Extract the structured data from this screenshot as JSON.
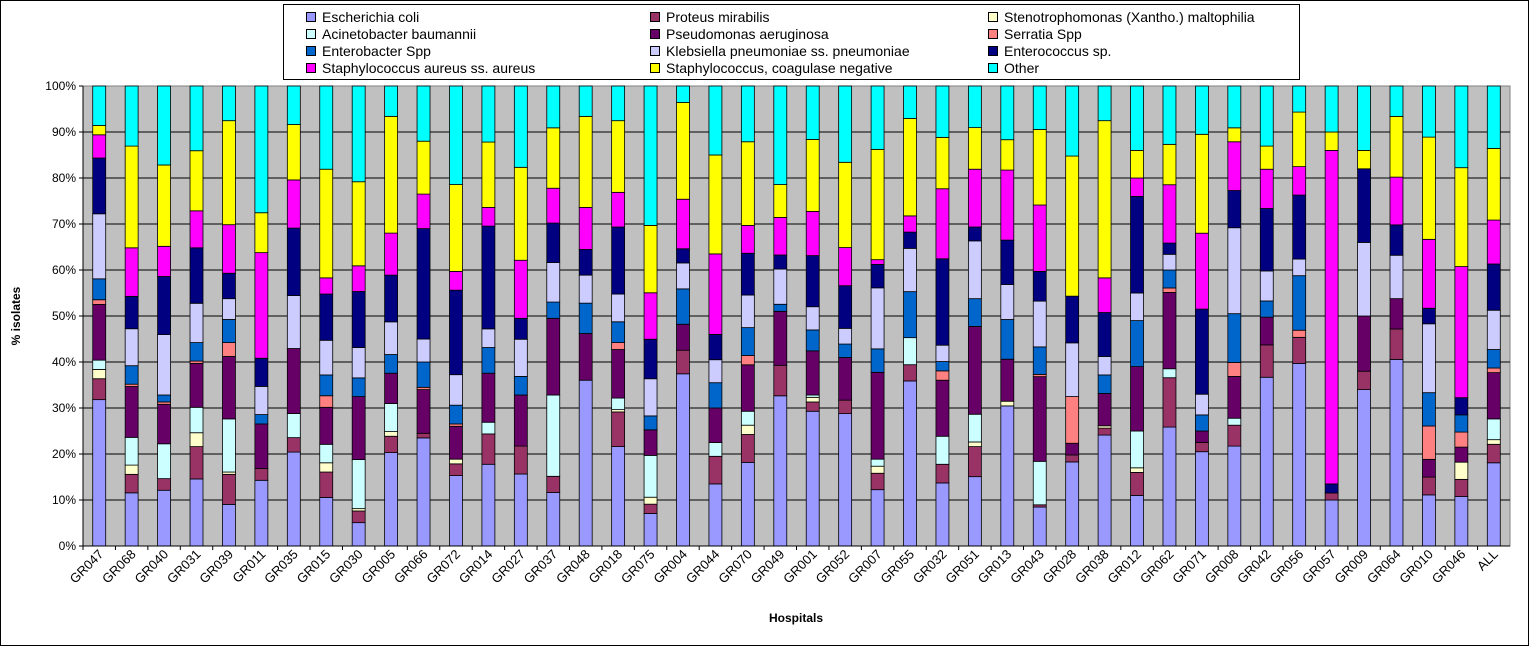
{
  "chart_data": {
    "type": "bar",
    "stacked": "percent",
    "xlabel": "Hospitals",
    "ylabel": "% isolates",
    "ylim": [
      0,
      100
    ],
    "yticks": [
      "0%",
      "10%",
      "20%",
      "30%",
      "40%",
      "50%",
      "60%",
      "70%",
      "80%",
      "90%",
      "100%"
    ],
    "plot_background": "#c0c0c0",
    "legend_position": "top",
    "categories": [
      "GR047",
      "GR068",
      "GR040",
      "GR031",
      "GR039",
      "GR011",
      "GR035",
      "GR015",
      "GR030",
      "GR005",
      "GR066",
      "GR072",
      "GR014",
      "GR027",
      "GR037",
      "GR048",
      "GR018",
      "GR075",
      "GR004",
      "GR044",
      "GR070",
      "GR049",
      "GR001",
      "GR052",
      "GR007",
      "GR055",
      "GR032",
      "GR051",
      "GR013",
      "GR043",
      "GR028",
      "GR038",
      "GR012",
      "GR062",
      "GR071",
      "GR008",
      "GR042",
      "GR056",
      "GR057",
      "GR009",
      "GR064",
      "GR010",
      "GR046",
      "ALL"
    ],
    "series": [
      {
        "name": "Escherichia coli",
        "color": "#9999ff",
        "values": [
          31.5,
          11.5,
          12,
          14.5,
          9,
          14,
          19.5,
          10.5,
          5,
          20,
          23.5,
          15,
          17.5,
          15.5,
          11.5,
          35.5,
          21.5,
          7,
          36.5,
          13.5,
          18,
          32,
          29,
          29.5,
          12,
          30.5,
          13.5,
          15,
          30,
          8.5,
          18,
          24,
          11,
          26.5,
          20.5,
          21.5,
          36.5,
          38.5,
          10,
          34,
          43,
          11.5,
          11.5,
          18
        ]
      },
      {
        "name": "Proteus mirabilis",
        "color": "#993366",
        "values": [
          4.5,
          4,
          2.5,
          7,
          6.5,
          2.5,
          3,
          5.5,
          2.5,
          3.5,
          1,
          2.5,
          6.5,
          6,
          3.5,
          0,
          7.5,
          2,
          5,
          6,
          6,
          6.5,
          2,
          3,
          3.5,
          3,
          4,
          6.5,
          0,
          0.5,
          1.5,
          1.5,
          5,
          11,
          2,
          4.5,
          7,
          5.5,
          1.5,
          4,
          7,
          4,
          4,
          4
        ]
      },
      {
        "name": "Stenotrophomonas (Xantho.) maltophilia",
        "color": "#ffffcc",
        "values": [
          2,
          2,
          0,
          3,
          0.5,
          0,
          0,
          2,
          0.5,
          1,
          0,
          1,
          0,
          0,
          0,
          0,
          0.5,
          1.5,
          0,
          0,
          2,
          0,
          1,
          0,
          1.5,
          0,
          0,
          1,
          1,
          0,
          0,
          0.5,
          1,
          0,
          0,
          0,
          0,
          0,
          0,
          0,
          0,
          0,
          4,
          1
        ]
      },
      {
        "name": "Acinetobacter baumannii",
        "color": "#ccffff",
        "values": [
          2,
          6,
          7.5,
          5.5,
          11.5,
          0,
          5,
          4,
          10.5,
          6,
          0,
          0,
          2.5,
          0,
          17.5,
          0,
          2.5,
          9,
          0,
          3,
          3,
          0,
          0.5,
          0,
          1.5,
          5,
          6,
          6,
          0,
          9.5,
          0,
          0,
          8,
          2,
          0,
          1.5,
          0,
          0,
          0,
          0,
          0,
          0,
          0,
          4.5
        ]
      },
      {
        "name": "Pseudomonas aeruginosa",
        "color": "#660066",
        "values": [
          12,
          11,
          8.5,
          9.5,
          13.5,
          9.5,
          13.5,
          8,
          13.5,
          6.5,
          9.5,
          7,
          10.5,
          11,
          16.5,
          10,
          10.5,
          5.5,
          5.5,
          7.5,
          10,
          11.5,
          9.5,
          9.5,
          18.5,
          0,
          12,
          19,
          9,
          18.5,
          2.5,
          7,
          14,
          17,
          2.5,
          9,
          6,
          0,
          0,
          12,
          7,
          4,
          3.5,
          10
        ]
      },
      {
        "name": "Serratia Spp",
        "color": "#ff8080",
        "values": [
          1,
          0.5,
          0.5,
          0.5,
          3,
          0,
          0,
          2.5,
          0,
          0,
          0.5,
          0.5,
          0,
          0,
          0,
          0,
          1.5,
          0,
          0,
          0,
          2,
          0,
          0,
          0,
          0,
          0,
          2,
          0,
          0,
          0.5,
          10,
          0,
          0,
          1,
          0,
          3,
          0,
          1.5,
          0,
          0,
          0,
          7.5,
          3.5,
          1
        ]
      },
      {
        "name": "Enterobacter Spp",
        "color": "#0066cc",
        "values": [
          4.5,
          4,
          1.5,
          4,
          5,
          2,
          0,
          4.5,
          4,
          4,
          5.5,
          4,
          5.5,
          4,
          3.5,
          6.5,
          4.5,
          3,
          7.5,
          5.5,
          6,
          1.5,
          4.5,
          3,
          5,
          8.5,
          2,
          6,
          8.5,
          6,
          0,
          4,
          10,
          4,
          3.5,
          10.5,
          3.5,
          11.5,
          0,
          0,
          0,
          7.5,
          4,
          4
        ]
      },
      {
        "name": "Klebsiella pneumoniae ss. pneumoniae",
        "color": "#ccccff",
        "values": [
          14,
          8,
          13,
          8.5,
          4.5,
          6,
          11,
          7.5,
          6.5,
          7,
          5,
          6.5,
          4,
          8,
          8.5,
          6,
          6,
          8,
          5.5,
          5,
          7,
          7.5,
          5,
          3.5,
          13,
          8,
          3.5,
          12.5,
          7.5,
          10,
          11.5,
          4,
          6,
          3.5,
          4.5,
          18.5,
          6.5,
          3.5,
          0,
          16,
          10,
          15.5,
          0,
          8.5
        ]
      },
      {
        "name": "Enterococcus sp.",
        "color": "#000080",
        "values": [
          12,
          7,
          12.5,
          12,
          5.5,
          6,
          14,
          10,
          12,
          10,
          24,
          18,
          22,
          4.5,
          8.5,
          5.5,
          14.5,
          8.5,
          3,
          5.5,
          9,
          3,
          11,
          9.5,
          5,
          3,
          18.5,
          3,
          9.5,
          6.5,
          10,
          9.5,
          21,
          2.5,
          18.5,
          8,
          13.5,
          13.5,
          2,
          16,
          7,
          3.5,
          4,
          10
        ]
      },
      {
        "name": "Staphylococcus aureus ss. aureus",
        "color": "#ff00ff",
        "values": [
          5,
          10.5,
          6.5,
          8,
          10.5,
          22.5,
          10,
          3.5,
          5.5,
          9,
          7.5,
          4,
          4,
          12.5,
          7.5,
          9,
          7.5,
          10,
          10.5,
          17.5,
          6,
          8,
          9.5,
          8.5,
          1,
          3,
          15,
          12.5,
          15,
          14.5,
          0,
          7.5,
          4,
          13,
          16.5,
          10.5,
          8.5,
          6,
          72.5,
          0,
          11,
          15.5,
          30.5,
          9.5
        ]
      },
      {
        "name": "Staphylococcus, coagulase negative",
        "color": "#ffff00",
        "values": [
          2,
          22,
          17.5,
          13,
          22.5,
          8.5,
          11.5,
          23.5,
          18,
          25,
          11.5,
          18.5,
          14,
          20,
          13,
          19.5,
          15.5,
          14.5,
          20.5,
          21.5,
          18,
          7,
          15.5,
          19,
          23.5,
          18,
          11,
          9,
          6.5,
          16.5,
          30,
          34,
          6,
          9,
          21.5,
          3,
          5,
          11.5,
          4,
          4,
          14,
          23,
          23,
          15.5
        ]
      },
      {
        "name": "Other",
        "color": "#00ffff",
        "values": [
          8.5,
          13,
          17,
          14,
          7.5,
          27,
          8,
          18,
          20.5,
          6.5,
          12,
          21,
          12,
          17.5,
          9,
          6.5,
          7.5,
          30,
          3.5,
          15,
          12,
          21,
          11.5,
          17,
          13.5,
          6,
          11,
          9,
          11.5,
          9.5,
          15,
          7.5,
          14,
          13,
          10.5,
          9,
          13,
          5.5,
          10,
          14,
          7,
          11.5,
          19,
          13.5
        ]
      }
    ]
  }
}
